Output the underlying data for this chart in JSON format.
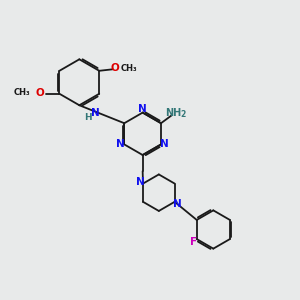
{
  "bg_color": "#e8eaea",
  "bond_color": "#1a1a1a",
  "N_color": "#1010ee",
  "O_color": "#dd0000",
  "F_color": "#cc00bb",
  "NH_color": "#337777",
  "lw": 1.3,
  "dbgap": 0.055,
  "xlim": [
    0,
    10
  ],
  "ylim": [
    0,
    10
  ]
}
